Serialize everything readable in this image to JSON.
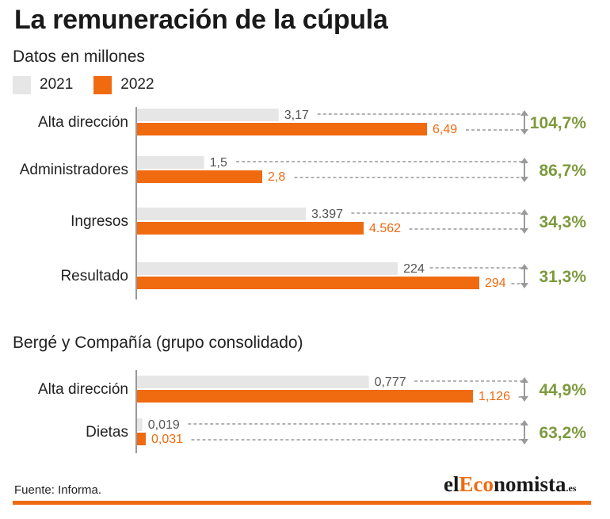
{
  "title": "La remuneración de la cúpula",
  "subtitle": "Datos en millones",
  "legend": [
    {
      "label": "2021",
      "color": "#e6e6e6"
    },
    {
      "label": "2022",
      "color": "#f06a10"
    }
  ],
  "chart_data": [
    {
      "type": "bar",
      "orientation": "horizontal",
      "title": "Datos en millones",
      "series_names": [
        "2021",
        "2022"
      ],
      "categories": [
        "Alta dirección",
        "Administradores",
        "Ingresos",
        "Resultado"
      ],
      "values_2021": [
        3.17,
        1.5,
        3397,
        224
      ],
      "values_2022": [
        6.49,
        2.8,
        4562,
        294
      ],
      "labels_2021": [
        "3,17",
        "1,5",
        "3.397",
        "224"
      ],
      "labels_2022": [
        "6,49",
        "2,8",
        "4.562",
        "294"
      ],
      "changes": [
        "104,7%",
        "86,7%",
        "34,3%",
        "31,3%"
      ]
    },
    {
      "type": "bar",
      "orientation": "horizontal",
      "title": "Bergé y Compañía (grupo consolidado)",
      "series_names": [
        "2021",
        "2022"
      ],
      "categories": [
        "Alta dirección",
        "Dietas"
      ],
      "values_2021": [
        0.777,
        0.019
      ],
      "values_2022": [
        1.126,
        0.031
      ],
      "labels_2021": [
        "0,777",
        "0,019"
      ],
      "labels_2022": [
        "1,126",
        "0,031"
      ],
      "changes": [
        "44,9%",
        "63,2%"
      ]
    }
  ],
  "section2_title": "Bergé y Compañía (grupo consolidado)",
  "colors": {
    "y2021": "#e6e6e6",
    "y2022": "#f06a10",
    "change": "#7d9a3c",
    "label2021": "#555555",
    "dash": "#9a9a9a",
    "axis": "#999999"
  },
  "source": "Fuente: Informa.",
  "brand": {
    "prefix": "el",
    "highlight": "Eco",
    "rest": "nomista",
    "domain": ".es"
  }
}
